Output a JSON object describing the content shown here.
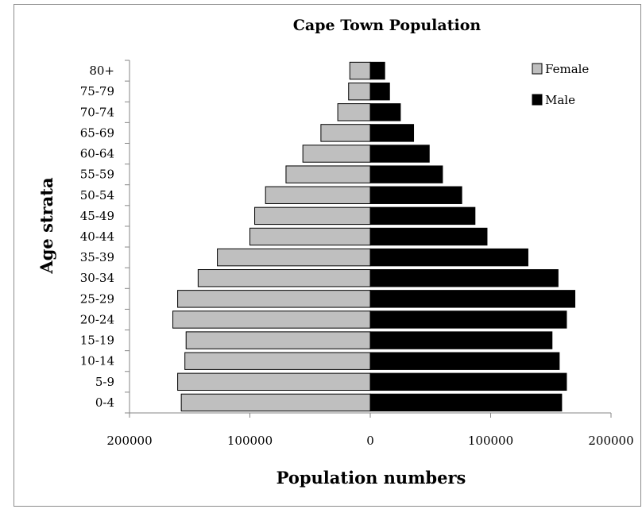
{
  "chart_data": {
    "type": "bar",
    "orientation": "horizontal",
    "layout": "population-pyramid",
    "title": "Cape Town Population",
    "xlabel": "Population numbers",
    "ylabel": "Age strata",
    "xlim": [
      -200000,
      200000
    ],
    "xticks": [
      -200000,
      -100000,
      0,
      100000,
      200000
    ],
    "xtick_labels": [
      "200000",
      "100000",
      "0",
      "100000",
      "200000"
    ],
    "categories": [
      "0-4",
      "5-9",
      "10-14",
      "15-19",
      "20-24",
      "25-29",
      "30-34",
      "35-39",
      "40-44",
      "45-49",
      "50-54",
      "55-59",
      "60-64",
      "65-69",
      "70-74",
      "75-79",
      "80+"
    ],
    "series": [
      {
        "name": "Female",
        "color": "#bfbfbf",
        "direction": "left",
        "values": [
          157000,
          160000,
          154000,
          153000,
          164000,
          160000,
          143000,
          127000,
          100000,
          96000,
          87000,
          70000,
          56000,
          41000,
          27000,
          18000,
          17000
        ]
      },
      {
        "name": "Male",
        "color": "#000000",
        "direction": "right",
        "values": [
          159000,
          163000,
          157000,
          151000,
          163000,
          170000,
          156000,
          131000,
          97000,
          87000,
          76000,
          60000,
          49000,
          36000,
          25000,
          16000,
          12000
        ]
      }
    ],
    "legend": "top-right",
    "grid": false
  }
}
